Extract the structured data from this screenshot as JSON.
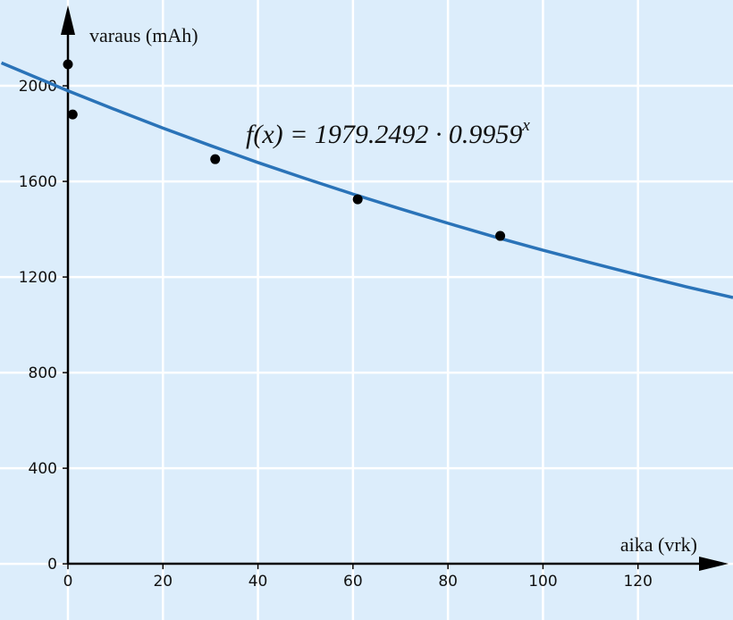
{
  "chart_data": {
    "type": "scatter",
    "x_label": "aika (vrk)",
    "y_label": "varaus (mAh)",
    "annotation": {
      "base": "f(x) = 1979.2492 · 0.9959",
      "exponent": "x"
    },
    "xlim": [
      -14.3,
      140
    ],
    "ylim": [
      -235,
      2359
    ],
    "xticks": [
      0,
      20,
      40,
      60,
      80,
      100,
      120
    ],
    "yticks": [
      0,
      400,
      800,
      1200,
      1600,
      2000
    ],
    "grid": true,
    "background": "#dcedfb",
    "points": {
      "color": "#000000",
      "x": [
        0,
        1,
        31,
        61,
        91
      ],
      "values": [
        2090,
        1880,
        1693,
        1525,
        1372
      ]
    },
    "curve": {
      "color": "#2a73b8",
      "x": [
        -14,
        0,
        10,
        20,
        30,
        40,
        50,
        60,
        70,
        80,
        90,
        100,
        110,
        120,
        130,
        140
      ],
      "values": [
        2096,
        1979,
        1900,
        1823,
        1750,
        1679,
        1612,
        1547,
        1485,
        1425,
        1367,
        1312,
        1260,
        1209,
        1160,
        1114
      ]
    }
  }
}
